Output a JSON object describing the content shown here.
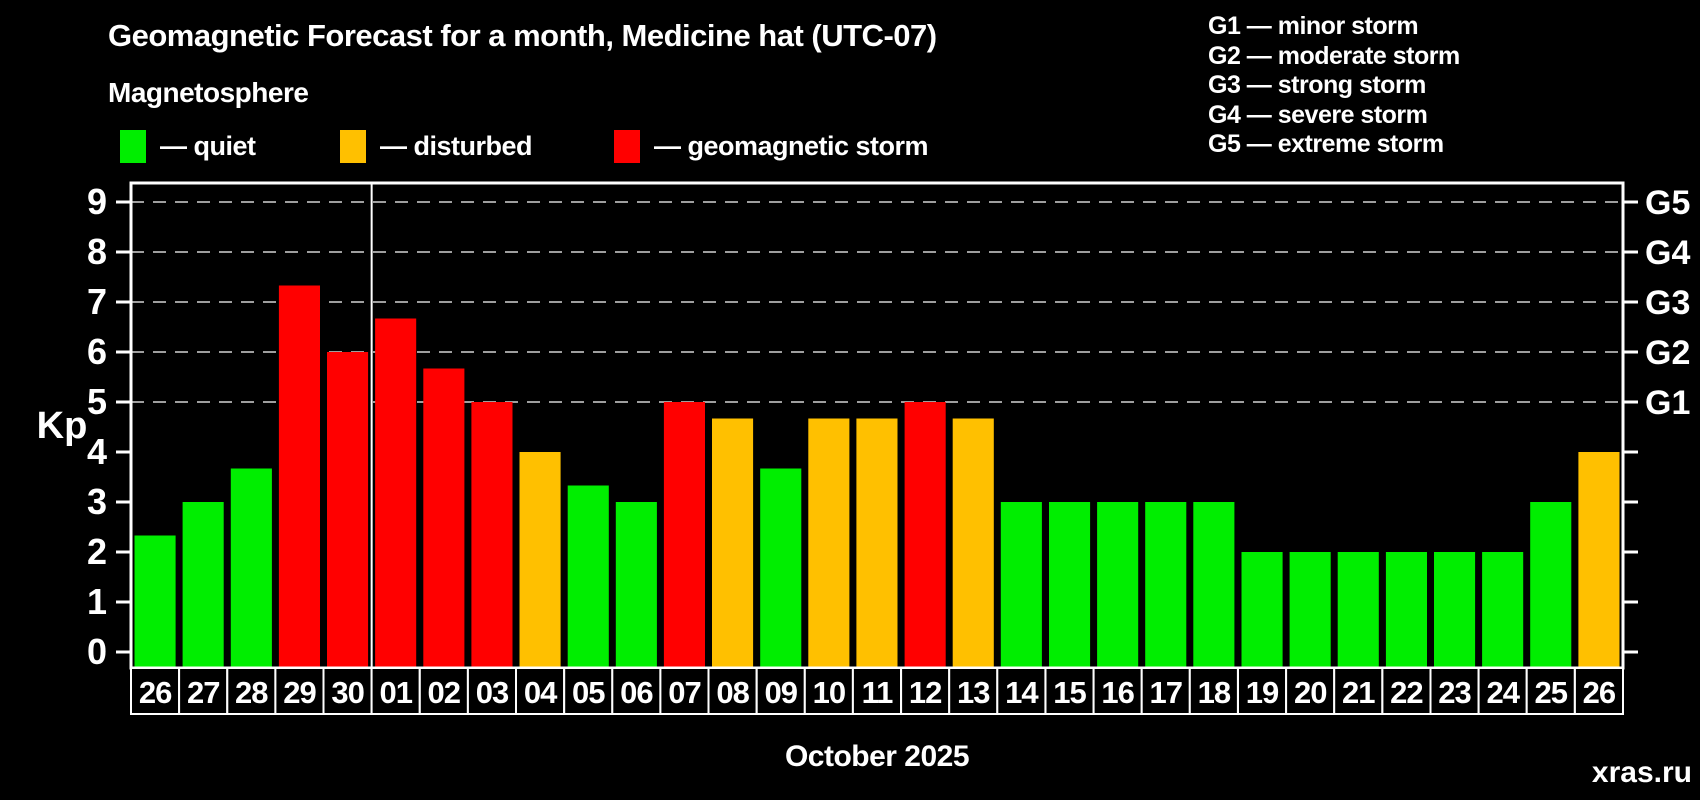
{
  "page": {
    "background": "#000000",
    "watermark": "xras.ru",
    "watermark_color": "#6f6f6f"
  },
  "header": {
    "title": "Geomagnetic Forecast for a month, Medicine hat (UTC-07)",
    "subtitle": "Magnetosphere"
  },
  "legend": {
    "items": [
      {
        "key": "quiet",
        "label": "— quiet",
        "color": "#00ee00"
      },
      {
        "key": "disturbed",
        "label": "— disturbed",
        "color": "#ffc000"
      },
      {
        "key": "storm",
        "label": "— geomagnetic storm",
        "color": "#ff0000"
      }
    ]
  },
  "g_legend": {
    "lines": [
      "G1 — minor storm",
      "G2 — moderate storm",
      "G3 — strong storm",
      "G4 — severe storm",
      "G5 — extreme storm"
    ]
  },
  "axes": {
    "y_label": "Kp",
    "x_label": "October 2025",
    "y_ticks": [
      0,
      1,
      2,
      3,
      4,
      5,
      6,
      7,
      8,
      9
    ],
    "g_ticks": [
      {
        "kp": 5,
        "label": "G1"
      },
      {
        "kp": 6,
        "label": "G2"
      },
      {
        "kp": 7,
        "label": "G3"
      },
      {
        "kp": 8,
        "label": "G4"
      },
      {
        "kp": 9,
        "label": "G5"
      }
    ]
  },
  "chart_data": {
    "type": "bar",
    "title": "Geomagnetic Forecast for a month, Medicine hat (UTC-07)",
    "xlabel": "October 2025",
    "ylabel": "Kp",
    "ylim": [
      -0.32,
      9.38
    ],
    "grid": "dashed horizontal at G-levels only",
    "gridlines_at": [
      5,
      6,
      7,
      8,
      9
    ],
    "grid_color": "#9e9e9e",
    "categories": [
      "26",
      "27",
      "28",
      "29",
      "30",
      "01",
      "02",
      "03",
      "04",
      "05",
      "06",
      "07",
      "08",
      "09",
      "10",
      "11",
      "12",
      "13",
      "14",
      "15",
      "16",
      "17",
      "18",
      "19",
      "20",
      "21",
      "22",
      "23",
      "24",
      "25",
      "26"
    ],
    "values": [
      2.33,
      3.0,
      3.67,
      7.33,
      6.0,
      6.67,
      5.67,
      5.0,
      4.0,
      3.33,
      3.0,
      5.0,
      4.67,
      3.67,
      4.67,
      4.67,
      5.0,
      4.67,
      3.0,
      3.0,
      3.0,
      3.0,
      3.0,
      2.0,
      2.0,
      2.0,
      2.0,
      2.0,
      2.0,
      3.0,
      4.0
    ],
    "statuses": [
      "quiet",
      "quiet",
      "quiet",
      "storm",
      "storm",
      "storm",
      "storm",
      "storm",
      "disturbed",
      "quiet",
      "quiet",
      "storm",
      "disturbed",
      "quiet",
      "disturbed",
      "disturbed",
      "storm",
      "disturbed",
      "quiet",
      "quiet",
      "quiet",
      "quiet",
      "quiet",
      "quiet",
      "quiet",
      "quiet",
      "quiet",
      "quiet",
      "quiet",
      "quiet",
      "disturbed"
    ],
    "color_map": {
      "quiet": "#00ee00",
      "disturbed": "#ffc000",
      "storm": "#ff0000"
    },
    "month_separator_before_category": "01",
    "legend_position": "top-left",
    "note": "days 26-30 belong to previous month (September), 01-26 to October 2025"
  }
}
